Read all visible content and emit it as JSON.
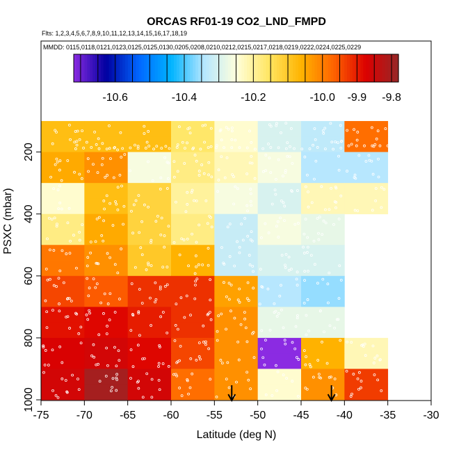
{
  "chart_data": {
    "type": "heatmap",
    "title": "ORCAS RF01-19 CO2_LND_FMPD",
    "flights_label": "Flts: 1,2,3,4,5,6,7,8,9,10,11,12,13,14,15,16,17,18,19",
    "dates_label": "MMDD: 0115,0118,0121,0123,0125,0125,0130,0205,0208,0210,0212,0215,0217,0218,0219,0222,0224,0225,0229",
    "xlabel": "Latitude (deg N)",
    "ylabel": "PSXC (mbar)",
    "xlim": [
      -75,
      -30
    ],
    "ylim": [
      1000,
      100
    ],
    "x_ticks": [
      -75,
      -70,
      -65,
      -60,
      -55,
      -50,
      -45,
      -40,
      -35,
      -30
    ],
    "y_ticks": [
      200,
      400,
      600,
      800,
      1000
    ],
    "lat_bins": [
      -75,
      -70,
      -65,
      -60,
      -55,
      -50,
      -45,
      -40,
      -35
    ],
    "pressure_bins": [
      100,
      150,
      200,
      250,
      300,
      350,
      400,
      450,
      500,
      550,
      600,
      650,
      700,
      750,
      800,
      850,
      900,
      950,
      1000
    ],
    "colorbar": {
      "range": [
        -10.72,
        -9.78
      ],
      "tick_values": [
        -10.6,
        -10.4,
        -10.2,
        -10.0,
        -9.9,
        -9.8
      ],
      "tick_labels": [
        "-10.6",
        "-10.4",
        "-10.2",
        "-10.0",
        "-9.9",
        "-9.8"
      ],
      "colors": [
        "#8b2be2",
        "#0000a0",
        "#0066ff",
        "#00b4ff",
        "#b4e6ff",
        "#ffffdc",
        "#ffe664",
        "#ffb400",
        "#ff6400",
        "#dc0000",
        "#962828"
      ]
    },
    "values": [
      [
        -10.08,
        -10.08,
        -10.08,
        -10.16,
        -10.24,
        -10.3,
        -10.33,
        -9.98
      ],
      [
        -10.08,
        -10.08,
        -10.08,
        -10.16,
        -10.24,
        -10.3,
        -10.33,
        -9.98
      ],
      [
        -10.05,
        -10.02,
        -10.26,
        -10.18,
        -10.22,
        -10.26,
        -10.34,
        -10.34
      ],
      [
        -10.05,
        -10.02,
        -10.26,
        -10.18,
        -10.22,
        -10.26,
        -10.34,
        -10.34
      ],
      [
        -10.24,
        -10.08,
        -10.12,
        -10.2,
        -10.26,
        -10.3,
        -10.22,
        -10.22
      ],
      [
        -10.24,
        -10.08,
        -10.12,
        -10.2,
        -10.26,
        -10.3,
        -10.22,
        -10.22
      ],
      [
        -10.18,
        -10.05,
        -10.12,
        -10.18,
        -10.32,
        -10.26,
        -10.28,
        null
      ],
      [
        -10.18,
        -10.05,
        -10.12,
        -10.18,
        -10.32,
        -10.26,
        -10.28,
        null
      ],
      [
        -9.99,
        -10.02,
        -10.1,
        -10.06,
        -10.32,
        -10.3,
        -10.3,
        null
      ],
      [
        -9.99,
        -10.02,
        -10.1,
        -10.06,
        -10.32,
        -10.3,
        -10.3,
        null
      ],
      [
        -9.94,
        -9.96,
        -9.92,
        -9.92,
        -10.04,
        -10.34,
        -10.36,
        null
      ],
      [
        -9.94,
        -9.96,
        -9.92,
        -9.92,
        -10.04,
        -10.34,
        -10.36,
        null
      ],
      [
        -9.89,
        -9.88,
        -9.9,
        -9.92,
        -10.02,
        -10.28,
        -10.28,
        null
      ],
      [
        -9.89,
        -9.88,
        -9.9,
        -9.92,
        -10.02,
        -10.28,
        -10.28,
        null
      ],
      [
        -9.87,
        -9.86,
        -9.88,
        -9.94,
        -10.02,
        -10.72,
        -10.06,
        -10.22
      ],
      [
        -9.87,
        -9.86,
        -9.88,
        -9.94,
        -10.02,
        -10.72,
        -10.06,
        -10.22
      ],
      [
        -9.86,
        -9.8,
        -9.86,
        -9.98,
        -10.02,
        -10.24,
        -10.02,
        -9.93
      ],
      [
        -9.86,
        -9.8,
        -9.86,
        -9.98,
        -10.02,
        -10.24,
        -10.02,
        -9.93
      ]
    ],
    "arrow_latitudes": [
      -53,
      -41.5
    ],
    "grid": false,
    "legend_placement": "top (horizontal colorbar)"
  }
}
